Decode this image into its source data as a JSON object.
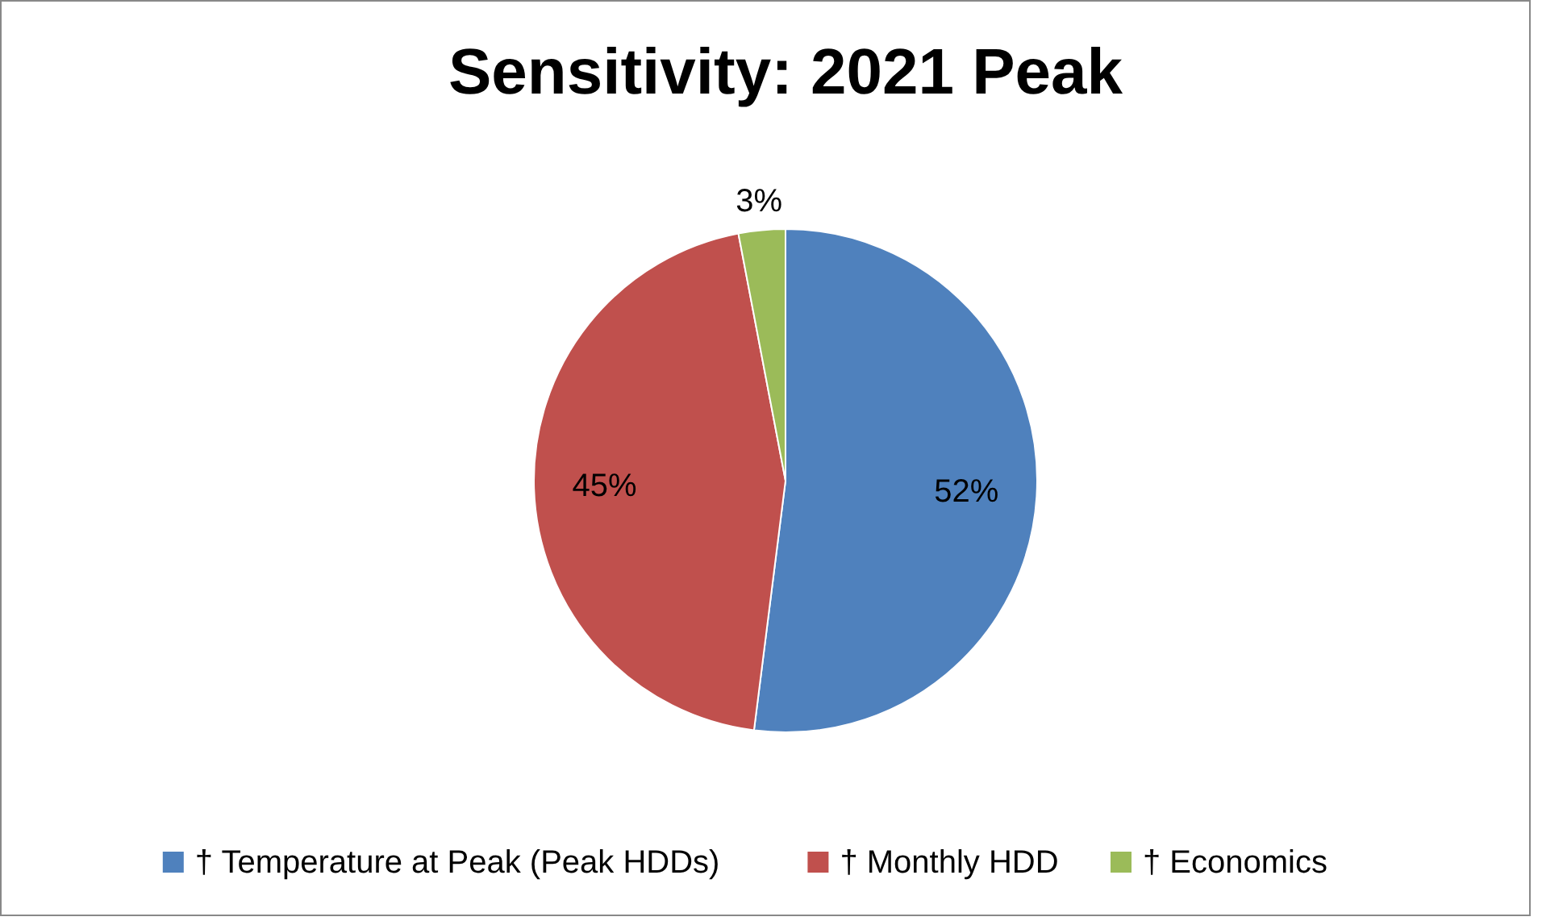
{
  "chart_data": {
    "type": "pie",
    "title": "Sensitivity: 2021 Peak",
    "categories": [
      "† Temperature at Peak (Peak HDDs)",
      "† Monthly HDD",
      "† Economics"
    ],
    "values": [
      52,
      45,
      3
    ],
    "value_labels": [
      "52%",
      "45%",
      "3%"
    ],
    "colors": [
      "#4f81bd",
      "#c0504d",
      "#9bbb59"
    ],
    "legend": "bottom"
  }
}
